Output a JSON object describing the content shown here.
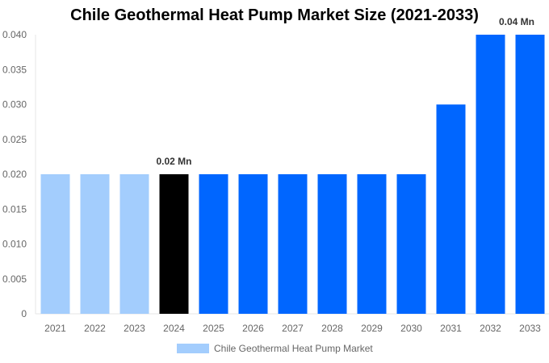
{
  "chart_data": {
    "type": "bar",
    "title": "Chile Geothermal Heat Pump Market Size (2021-2033)",
    "categories": [
      "2021",
      "2022",
      "2023",
      "2024",
      "2025",
      "2026",
      "2027",
      "2028",
      "2029",
      "2030",
      "2031",
      "2032",
      "2033"
    ],
    "series": [
      {
        "name": "Chile Geothermal Heat Pump Market",
        "values": [
          0.02,
          0.02,
          0.02,
          0.02,
          0.02,
          0.02,
          0.02,
          0.02,
          0.02,
          0.02,
          0.03,
          0.04,
          0.04
        ]
      }
    ],
    "bar_colors": [
      "#a3cdfd",
      "#a3cdfd",
      "#a3cdfd",
      "#000000",
      "#0066ff",
      "#0066ff",
      "#0066ff",
      "#0066ff",
      "#0066ff",
      "#0066ff",
      "#0066ff",
      "#0066ff",
      "#0066ff"
    ],
    "data_labels": [
      {
        "category": "2024",
        "text": "0.02 Mn"
      },
      {
        "category": "2033",
        "text": "0.04 Mn"
      }
    ],
    "yticks": [
      "0",
      "0.005",
      "0.010",
      "0.015",
      "0.020",
      "0.025",
      "0.030",
      "0.035",
      "0.040"
    ],
    "ylim": [
      0,
      0.04
    ],
    "xlabel": "",
    "ylabel": "",
    "grid": false,
    "legend_placement": "bottom",
    "legend_color": "#a3cdfd"
  }
}
